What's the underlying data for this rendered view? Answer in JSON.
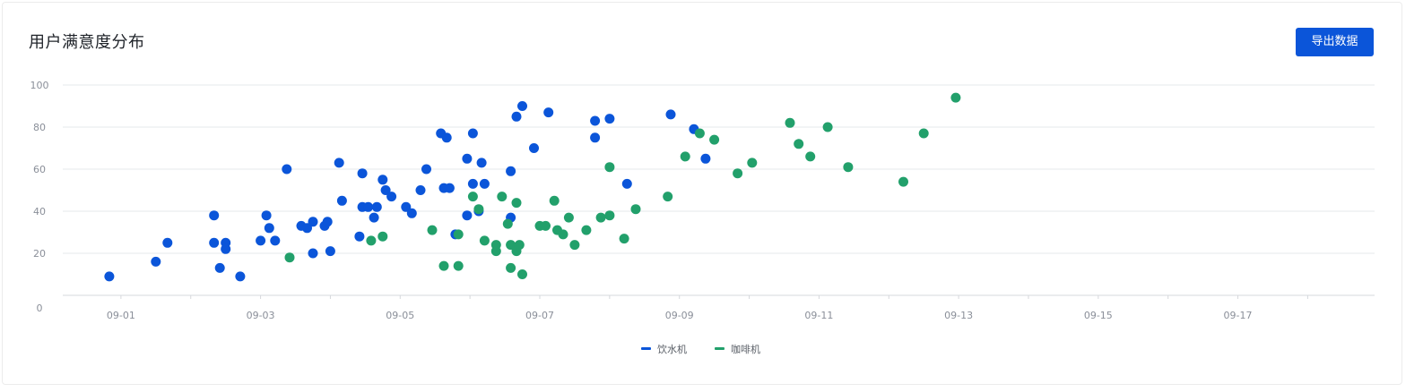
{
  "card": {
    "title": "用户满意度分布",
    "export_label": "导出数据"
  },
  "colors": {
    "series1": "#0b55d9",
    "series2": "#22a06b",
    "accent": "#0b55d9",
    "grid": "#e6e8eb",
    "axis": "#d6d8dc"
  },
  "chart_data": {
    "type": "scatter",
    "xlabel": "",
    "ylabel": "",
    "x_type": "date",
    "xlim": [
      "2024-08-31T04:00",
      "2024-09-18T23:00"
    ],
    "ylim": [
      0,
      100
    ],
    "y_ticks": [
      0,
      20,
      40,
      60,
      80,
      100
    ],
    "x_tick_labels": [
      "09-01",
      "09-03",
      "09-05",
      "09-07",
      "09-09",
      "09-11",
      "09-13",
      "09-15",
      "09-17"
    ],
    "x_ticks": [
      "2024-09-01",
      "2024-09-03",
      "2024-09-05",
      "2024-09-07",
      "2024-09-09",
      "2024-09-11",
      "2024-09-13",
      "2024-09-15",
      "2024-09-17"
    ],
    "grid": true,
    "legend_position": "bottom-center",
    "series": [
      {
        "name": "饮水机",
        "points": [
          [
            "2024-08-31T20:00",
            9
          ],
          [
            "2024-09-01T12:00",
            16
          ],
          [
            "2024-09-01T16:00",
            25
          ],
          [
            "2024-09-02T08:00",
            38
          ],
          [
            "2024-09-02T08:00",
            25
          ],
          [
            "2024-09-02T10:00",
            13
          ],
          [
            "2024-09-02T12:00",
            25
          ],
          [
            "2024-09-02T12:00",
            22
          ],
          [
            "2024-09-02T17:00",
            9
          ],
          [
            "2024-09-03T00:00",
            26
          ],
          [
            "2024-09-03T02:00",
            38
          ],
          [
            "2024-09-03T03:00",
            32
          ],
          [
            "2024-09-03T05:00",
            26
          ],
          [
            "2024-09-03T09:00",
            60
          ],
          [
            "2024-09-03T14:00",
            33
          ],
          [
            "2024-09-03T16:00",
            32
          ],
          [
            "2024-09-03T18:00",
            20
          ],
          [
            "2024-09-03T18:00",
            35
          ],
          [
            "2024-09-03T22:00",
            33
          ],
          [
            "2024-09-03T23:00",
            35
          ],
          [
            "2024-09-04T00:00",
            21
          ],
          [
            "2024-09-04T03:00",
            63
          ],
          [
            "2024-09-04T04:00",
            45
          ],
          [
            "2024-09-04T10:00",
            28
          ],
          [
            "2024-09-04T11:00",
            42
          ],
          [
            "2024-09-04T11:00",
            58
          ],
          [
            "2024-09-04T13:00",
            42
          ],
          [
            "2024-09-04T15:00",
            37
          ],
          [
            "2024-09-04T16:00",
            42
          ],
          [
            "2024-09-04T18:00",
            55
          ],
          [
            "2024-09-04T19:00",
            50
          ],
          [
            "2024-09-04T21:00",
            47
          ],
          [
            "2024-09-05T02:00",
            42
          ],
          [
            "2024-09-05T04:00",
            39
          ],
          [
            "2024-09-05T07:00",
            50
          ],
          [
            "2024-09-05T09:00",
            60
          ],
          [
            "2024-09-05T14:00",
            77
          ],
          [
            "2024-09-05T15:00",
            51
          ],
          [
            "2024-09-05T16:00",
            75
          ],
          [
            "2024-09-05T17:00",
            51
          ],
          [
            "2024-09-05T19:00",
            29
          ],
          [
            "2024-09-05T23:00",
            38
          ],
          [
            "2024-09-05T23:00",
            65
          ],
          [
            "2024-09-06T01:00",
            77
          ],
          [
            "2024-09-06T01:00",
            53
          ],
          [
            "2024-09-06T03:00",
            40
          ],
          [
            "2024-09-06T04:00",
            63
          ],
          [
            "2024-09-06T05:00",
            53
          ],
          [
            "2024-09-06T14:00",
            37
          ],
          [
            "2024-09-06T14:00",
            59
          ],
          [
            "2024-09-06T16:00",
            85
          ],
          [
            "2024-09-06T18:00",
            90
          ],
          [
            "2024-09-06T22:00",
            70
          ],
          [
            "2024-09-07T03:00",
            87
          ],
          [
            "2024-09-07T19:00",
            83
          ],
          [
            "2024-09-07T19:00",
            75
          ],
          [
            "2024-09-08T00:00",
            84
          ],
          [
            "2024-09-08T06:00",
            53
          ],
          [
            "2024-09-08T21:00",
            86
          ],
          [
            "2024-09-09T05:00",
            79
          ],
          [
            "2024-09-09T09:00",
            65
          ]
        ]
      },
      {
        "name": "咖啡机",
        "points": [
          [
            "2024-09-03T10:00",
            18
          ],
          [
            "2024-09-04T14:00",
            26
          ],
          [
            "2024-09-04T18:00",
            28
          ],
          [
            "2024-09-05T11:00",
            31
          ],
          [
            "2024-09-05T15:00",
            14
          ],
          [
            "2024-09-05T20:00",
            14
          ],
          [
            "2024-09-05T20:00",
            29
          ],
          [
            "2024-09-06T01:00",
            47
          ],
          [
            "2024-09-06T03:00",
            41
          ],
          [
            "2024-09-06T05:00",
            26
          ],
          [
            "2024-09-06T09:00",
            21
          ],
          [
            "2024-09-06T09:00",
            24
          ],
          [
            "2024-09-06T11:00",
            47
          ],
          [
            "2024-09-06T13:00",
            34
          ],
          [
            "2024-09-06T14:00",
            13
          ],
          [
            "2024-09-06T14:00",
            24
          ],
          [
            "2024-09-06T16:00",
            44
          ],
          [
            "2024-09-06T16:00",
            21
          ],
          [
            "2024-09-06T17:00",
            24
          ],
          [
            "2024-09-06T18:00",
            10
          ],
          [
            "2024-09-07T00:00",
            33
          ],
          [
            "2024-09-07T02:00",
            33
          ],
          [
            "2024-09-07T05:00",
            45
          ],
          [
            "2024-09-07T06:00",
            31
          ],
          [
            "2024-09-07T08:00",
            29
          ],
          [
            "2024-09-07T10:00",
            37
          ],
          [
            "2024-09-07T12:00",
            24
          ],
          [
            "2024-09-07T16:00",
            31
          ],
          [
            "2024-09-07T21:00",
            37
          ],
          [
            "2024-09-08T00:00",
            38
          ],
          [
            "2024-09-08T00:00",
            61
          ],
          [
            "2024-09-08T05:00",
            27
          ],
          [
            "2024-09-08T09:00",
            41
          ],
          [
            "2024-09-08T20:00",
            47
          ],
          [
            "2024-09-09T02:00",
            66
          ],
          [
            "2024-09-09T07:00",
            77
          ],
          [
            "2024-09-09T12:00",
            74
          ],
          [
            "2024-09-09T20:00",
            58
          ],
          [
            "2024-09-10T01:00",
            63
          ],
          [
            "2024-09-10T14:00",
            82
          ],
          [
            "2024-09-10T17:00",
            72
          ],
          [
            "2024-09-10T21:00",
            66
          ],
          [
            "2024-09-11T03:00",
            80
          ],
          [
            "2024-09-11T10:00",
            61
          ],
          [
            "2024-09-12T05:00",
            54
          ],
          [
            "2024-09-12T12:00",
            77
          ],
          [
            "2024-09-12T23:00",
            94
          ]
        ]
      }
    ]
  }
}
